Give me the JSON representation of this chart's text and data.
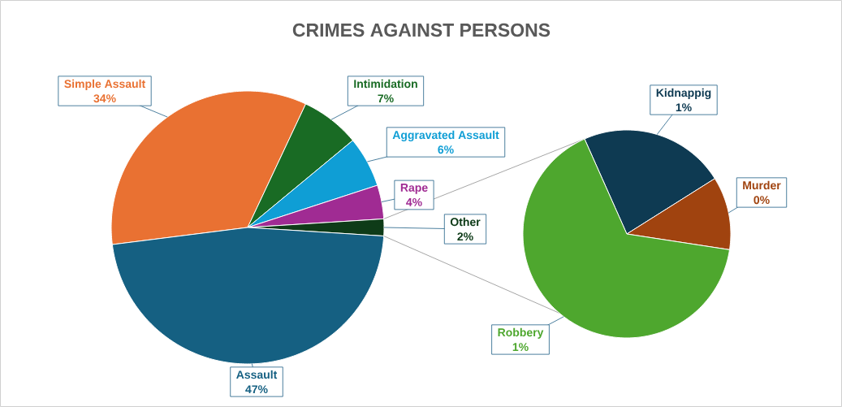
{
  "chart_data": [
    {
      "type": "pie",
      "title": "CRIMES AGAINST PERSONS",
      "categories": [
        "Simple Assault",
        "Intimidation",
        "Aggravated Assault",
        "Rape",
        "Other",
        "Assault"
      ],
      "values": [
        34,
        7,
        6,
        4,
        2,
        47
      ],
      "value_labels": [
        "34%",
        "7%",
        "6%",
        "4%",
        "2%",
        "47%"
      ],
      "colors": [
        "#e97132",
        "#196b24",
        "#0f9ed5",
        "#a02b93",
        "#0e3b18",
        "#156082"
      ]
    },
    {
      "type": "pie",
      "categories": [
        "Kidnappig",
        "Murder",
        "Robbery"
      ],
      "values": [
        0.5,
        0.25,
        1.45
      ],
      "value_labels": [
        "1%",
        "0%",
        "1%"
      ],
      "colors": [
        "#0e3a52",
        "#a0430f",
        "#4ea72e"
      ]
    }
  ]
}
